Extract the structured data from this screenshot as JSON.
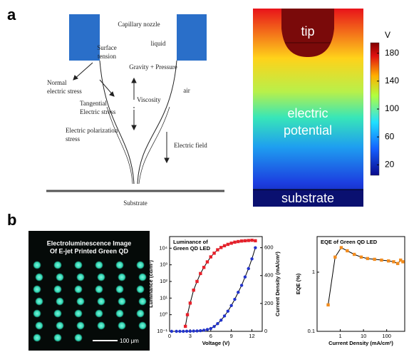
{
  "panel_a": {
    "label": "a",
    "diagram": {
      "nozzle": "Capillary nozzle",
      "liquid": "liquid",
      "surface_tension": [
        "Surface",
        "tension"
      ],
      "gravity": "Gravity + Pressure",
      "normal": [
        "Normal",
        "electric stress"
      ],
      "tangential": [
        "Tangential",
        "Electric stress"
      ],
      "viscosity": "Viscosity",
      "air": "air",
      "polarization": [
        "Electric polarization",
        "stress"
      ],
      "field": "Electric field",
      "substrate": "Substrate"
    },
    "potential_map": {
      "unit": "V",
      "lim": [
        5,
        195
      ],
      "ticks": [
        20,
        60,
        100,
        140,
        180
      ],
      "tip": "tip",
      "region": [
        "electric",
        "potential"
      ],
      "substrate": "substrate"
    }
  },
  "panel_b": {
    "label": "b",
    "image_title": [
      "Electroluminescence Image",
      "Of E-jet Printed Green QD"
    ],
    "scale_bar": "100 μm"
  },
  "chart_data": [
    {
      "type": "line",
      "title": [
        "Luminance of",
        "Green QD LED"
      ],
      "x_label": "Voltage (V)",
      "y_label": "Luminance (cd/m²)",
      "y2_label": "Current Density (mA/cm²)",
      "xlim": [
        0,
        13.5
      ],
      "xticks": [
        0,
        3,
        6,
        9,
        12
      ],
      "ylog": true,
      "ylim": [
        0.1,
        50000
      ],
      "yticks": [
        {
          "value": 0.1,
          "label": "10⁻¹"
        },
        {
          "value": 1,
          "label": "10⁰"
        },
        {
          "value": 10,
          "label": "10¹"
        },
        {
          "value": 100,
          "label": "10²"
        },
        {
          "value": 1000,
          "label": "10³"
        },
        {
          "value": 10000,
          "label": "10⁴"
        }
      ],
      "y2lim": [
        0,
        680
      ],
      "y2ticks": [
        0,
        200,
        400,
        600
      ],
      "series": [
        {
          "color": "#e8202a",
          "line_color": "#000000",
          "marker": "square",
          "x": [
            2.3,
            2.6,
            3,
            3.5,
            4,
            4.5,
            5,
            5.5,
            6,
            6.5,
            7,
            7.5,
            8,
            8.5,
            9,
            9.5,
            10,
            10.5,
            11,
            11.5,
            12,
            12.5
          ],
          "values": [
            0.2,
            1,
            5,
            30,
            100,
            300,
            700,
            1500,
            3000,
            5000,
            8000,
            11000,
            14000,
            17000,
            20000,
            23000,
            25000,
            27000,
            28000,
            29000,
            30000,
            28000
          ]
        },
        {
          "color": "#2233cc",
          "line_color": "#000000",
          "marker": "circle",
          "axis": "y2",
          "x": [
            0.3,
            1,
            1.5,
            2,
            2.5,
            3,
            3.5,
            4,
            4.5,
            5,
            5.5,
            6,
            6.5,
            7,
            7.5,
            8,
            8.5,
            9,
            9.5,
            10,
            10.5,
            11,
            11.5,
            12,
            12.5
          ],
          "values": [
            0,
            0,
            0,
            0,
            1,
            1,
            2,
            3,
            5,
            8,
            13,
            20,
            35,
            55,
            80,
            110,
            145,
            185,
            230,
            280,
            330,
            390,
            450,
            520,
            600
          ]
        }
      ]
    },
    {
      "type": "line",
      "title": "EQE of Green QD LED",
      "x_label": "Current Density (mA/cm²)",
      "y_label": "EQE (%)",
      "xlog": true,
      "xlim": [
        0.1,
        600
      ],
      "xticks": [
        1,
        10,
        100
      ],
      "ylog": true,
      "ylim": [
        0.1,
        4
      ],
      "yticks": [
        0.1,
        1
      ],
      "series": [
        {
          "color": "#f28c1e",
          "line_color": "#000000",
          "marker": "square",
          "x": [
            0.3,
            0.6,
            1.1,
            2,
            4,
            8,
            15,
            30,
            60,
            120,
            200,
            300,
            400,
            500
          ],
          "values": [
            0.28,
            1.8,
            2.6,
            2.3,
            2.0,
            1.8,
            1.7,
            1.65,
            1.6,
            1.55,
            1.5,
            1.4,
            1.6,
            1.5
          ]
        }
      ]
    }
  ]
}
